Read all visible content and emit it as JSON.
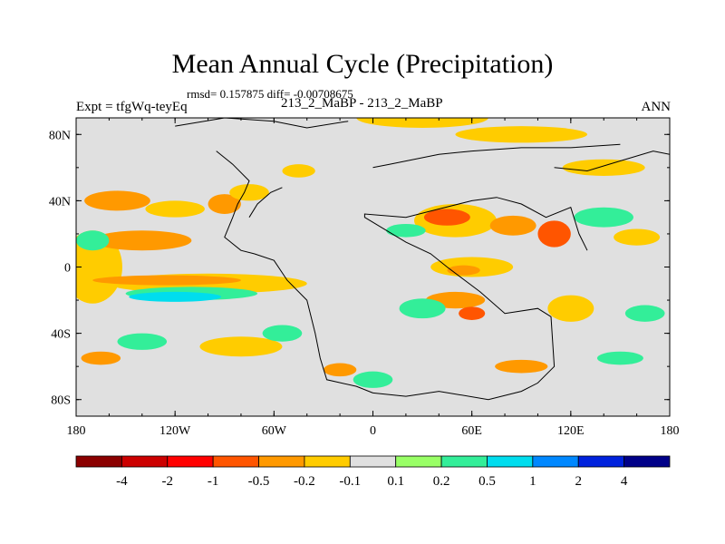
{
  "title": "Mean Annual Cycle (Precipitation)",
  "stats_line": "rmsd= 0.157875 diff= -0.00708675",
  "expt_label": "Expt = tfgWq-teyEq",
  "runs_label": "213_2_MaBP - 213_2_MaBP",
  "season_label": "ANN",
  "chart_data": {
    "type": "heatmap",
    "title": "Mean Annual Cycle (Precipitation)",
    "subtitle": "rmsd= 0.157875 diff= -0.00708675",
    "variable": "Precipitation difference",
    "xlabel": "",
    "ylabel": "",
    "xlim": [
      -180,
      180
    ],
    "ylim": [
      -90,
      90
    ],
    "x_ticks": [
      {
        "value": -180,
        "label": "180"
      },
      {
        "value": -120,
        "label": "120W"
      },
      {
        "value": -60,
        "label": "60W"
      },
      {
        "value": 0,
        "label": "0"
      },
      {
        "value": 60,
        "label": "60E"
      },
      {
        "value": 120,
        "label": "120E"
      },
      {
        "value": 180,
        "label": "180"
      }
    ],
    "y_ticks": [
      {
        "value": 80,
        "label": "80N"
      },
      {
        "value": 40,
        "label": "40N"
      },
      {
        "value": 0,
        "label": "0"
      },
      {
        "value": -40,
        "label": "40S"
      },
      {
        "value": -80,
        "label": "80S"
      }
    ],
    "colorbar": {
      "levels": [
        "-4",
        "-2",
        "-1",
        "-0.5",
        "-0.2",
        "-0.1",
        "0.1",
        "0.2",
        "0.5",
        "1",
        "2",
        "4"
      ],
      "colors": [
        "#8b0000",
        "#cc0000",
        "#ff0000",
        "#ff5500",
        "#ff9900",
        "#ffcc00",
        "#e0e0e0",
        "#99ff66",
        "#33ee99",
        "#00ddee",
        "#0088ff",
        "#0022dd",
        "#000088"
      ]
    },
    "background_color": "#e0e0e0",
    "anomaly_regions": [
      {
        "lon": -170,
        "lat": 0,
        "rlon": 18,
        "rlat": 22,
        "color": "#ffcc00"
      },
      {
        "lon": -100,
        "lat": -10,
        "rlon": 60,
        "rlat": 6,
        "color": "#ffcc00"
      },
      {
        "lon": -110,
        "lat": -16,
        "rlon": 40,
        "rlat": 4,
        "color": "#33ee99"
      },
      {
        "lon": -120,
        "lat": -18,
        "rlon": 28,
        "rlat": 3,
        "color": "#00ddee"
      },
      {
        "lon": -125,
        "lat": -8,
        "rlon": 45,
        "rlat": 3,
        "color": "#ff9900"
      },
      {
        "lon": -140,
        "lat": 16,
        "rlon": 30,
        "rlat": 6,
        "color": "#ff9900"
      },
      {
        "lon": -170,
        "lat": 16,
        "rlon": 10,
        "rlat": 6,
        "color": "#33ee99"
      },
      {
        "lon": -155,
        "lat": 40,
        "rlon": 20,
        "rlat": 6,
        "color": "#ff9900"
      },
      {
        "lon": -120,
        "lat": 35,
        "rlon": 18,
        "rlat": 5,
        "color": "#ffcc00"
      },
      {
        "lon": -90,
        "lat": 38,
        "rlon": 10,
        "rlat": 6,
        "color": "#ff9900"
      },
      {
        "lon": -75,
        "lat": 45,
        "rlon": 12,
        "rlat": 5,
        "color": "#ffcc00"
      },
      {
        "lon": -45,
        "lat": 58,
        "rlon": 10,
        "rlat": 4,
        "color": "#ffcc00"
      },
      {
        "lon": -140,
        "lat": -45,
        "rlon": 15,
        "rlat": 5,
        "color": "#33ee99"
      },
      {
        "lon": -165,
        "lat": -55,
        "rlon": 12,
        "rlat": 4,
        "color": "#ff9900"
      },
      {
        "lon": -80,
        "lat": -48,
        "rlon": 25,
        "rlat": 6,
        "color": "#ffcc00"
      },
      {
        "lon": -55,
        "lat": -40,
        "rlon": 12,
        "rlat": 5,
        "color": "#33ee99"
      },
      {
        "lon": -20,
        "lat": -62,
        "rlon": 10,
        "rlat": 4,
        "color": "#ff9900"
      },
      {
        "lon": 0,
        "lat": -68,
        "rlon": 12,
        "rlat": 5,
        "color": "#33ee99"
      },
      {
        "lon": 30,
        "lat": 90,
        "rlon": 40,
        "rlat": 6,
        "color": "#ffcc00"
      },
      {
        "lon": 90,
        "lat": 80,
        "rlon": 40,
        "rlat": 5,
        "color": "#ffcc00"
      },
      {
        "lon": 140,
        "lat": 60,
        "rlon": 25,
        "rlat": 5,
        "color": "#ffcc00"
      },
      {
        "lon": 50,
        "lat": 28,
        "rlon": 25,
        "rlat": 10,
        "color": "#ffcc00"
      },
      {
        "lon": 45,
        "lat": 30,
        "rlon": 14,
        "rlat": 5,
        "color": "#ff5500"
      },
      {
        "lon": 20,
        "lat": 22,
        "rlon": 12,
        "rlat": 4,
        "color": "#33ee99"
      },
      {
        "lon": 85,
        "lat": 25,
        "rlon": 14,
        "rlat": 6,
        "color": "#ff9900"
      },
      {
        "lon": 110,
        "lat": 20,
        "rlon": 10,
        "rlat": 8,
        "color": "#ff5500"
      },
      {
        "lon": 140,
        "lat": 30,
        "rlon": 18,
        "rlat": 6,
        "color": "#33ee99"
      },
      {
        "lon": 160,
        "lat": 18,
        "rlon": 14,
        "rlat": 5,
        "color": "#ffcc00"
      },
      {
        "lon": 60,
        "lat": 0,
        "rlon": 25,
        "rlat": 6,
        "color": "#ffcc00"
      },
      {
        "lon": 55,
        "lat": -2,
        "rlon": 10,
        "rlat": 3,
        "color": "#ff9900"
      },
      {
        "lon": 50,
        "lat": -20,
        "rlon": 18,
        "rlat": 5,
        "color": "#ff9900"
      },
      {
        "lon": 60,
        "lat": -28,
        "rlon": 8,
        "rlat": 4,
        "color": "#ff5500"
      },
      {
        "lon": 30,
        "lat": -25,
        "rlon": 14,
        "rlat": 6,
        "color": "#33ee99"
      },
      {
        "lon": 120,
        "lat": -25,
        "rlon": 14,
        "rlat": 8,
        "color": "#ffcc00"
      },
      {
        "lon": 165,
        "lat": -28,
        "rlon": 12,
        "rlat": 5,
        "color": "#33ee99"
      },
      {
        "lon": 90,
        "lat": -60,
        "rlon": 16,
        "rlat": 4,
        "color": "#ff9900"
      },
      {
        "lon": 150,
        "lat": -55,
        "rlon": 14,
        "rlat": 4,
        "color": "#33ee99"
      }
    ],
    "coastlines": [
      [
        [
          -120,
          85
        ],
        [
          -90,
          90
        ],
        [
          -60,
          88
        ],
        [
          -40,
          84
        ],
        [
          -15,
          88
        ]
      ],
      [
        [
          -95,
          70
        ],
        [
          -85,
          62
        ],
        [
          -75,
          52
        ],
        [
          -78,
          45
        ],
        [
          -82,
          38
        ],
        [
          -85,
          30
        ],
        [
          -90,
          18
        ],
        [
          -80,
          10
        ],
        [
          -72,
          8
        ]
      ],
      [
        [
          -72,
          8
        ],
        [
          -60,
          4
        ],
        [
          -52,
          -8
        ],
        [
          -40,
          -20
        ],
        [
          -35,
          -40
        ],
        [
          -32,
          -55
        ],
        [
          -28,
          -68
        ],
        [
          -10,
          -72
        ],
        [
          0,
          -76
        ]
      ],
      [
        [
          0,
          -76
        ],
        [
          20,
          -78
        ],
        [
          40,
          -75
        ],
        [
          70,
          -80
        ],
        [
          90,
          -75
        ],
        [
          100,
          -70
        ],
        [
          110,
          -60
        ],
        [
          108,
          -30
        ],
        [
          100,
          -25
        ],
        [
          80,
          -28
        ],
        [
          65,
          -15
        ],
        [
          45,
          0
        ],
        [
          35,
          8
        ],
        [
          20,
          15
        ],
        [
          -5,
          30
        ],
        [
          -5,
          32
        ],
        [
          20,
          30
        ],
        [
          40,
          35
        ],
        [
          60,
          40
        ],
        [
          75,
          42
        ],
        [
          90,
          38
        ],
        [
          105,
          30
        ],
        [
          120,
          36
        ],
        [
          125,
          20
        ],
        [
          130,
          10
        ]
      ],
      [
        [
          -75,
          30
        ],
        [
          -70,
          38
        ],
        [
          -62,
          45
        ],
        [
          -55,
          48
        ]
      ],
      [
        [
          110,
          60
        ],
        [
          130,
          58
        ],
        [
          150,
          64
        ],
        [
          170,
          70
        ],
        [
          180,
          68
        ]
      ],
      [
        [
          0,
          60
        ],
        [
          10,
          62
        ],
        [
          40,
          68
        ],
        [
          60,
          70
        ],
        [
          90,
          72
        ],
        [
          120,
          72
        ],
        [
          150,
          74
        ]
      ]
    ]
  }
}
